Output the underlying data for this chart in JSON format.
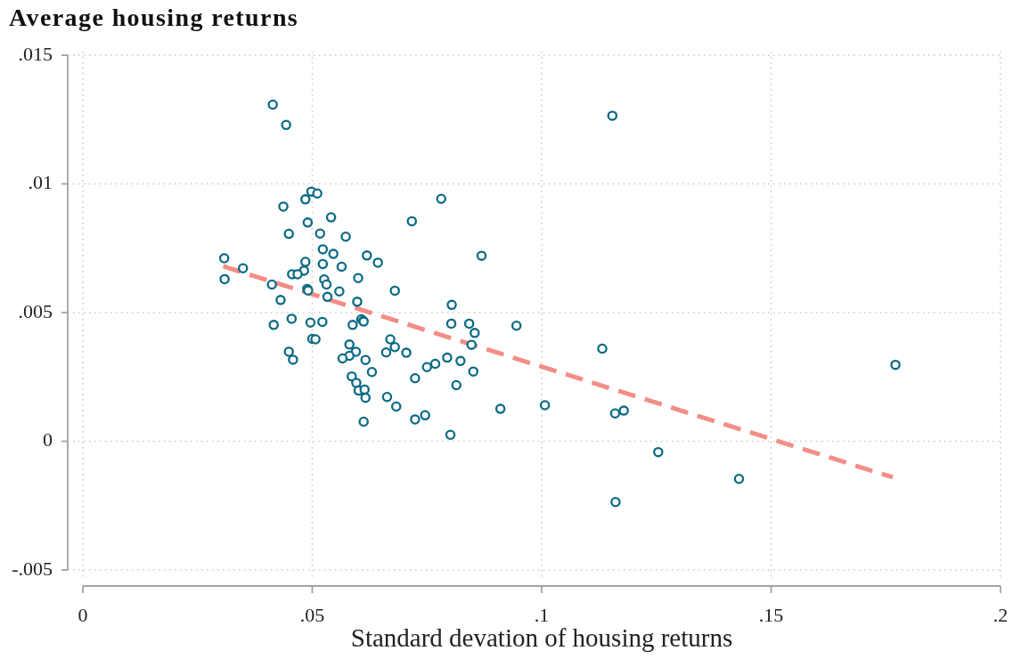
{
  "chart_data": {
    "type": "scatter",
    "title": "Average housing returns",
    "xlabel": "Standard devation of housing returns",
    "xlim": [
      0,
      0.2
    ],
    "xticks": [
      0,
      {
        "value": 0.05,
        "label": ".05"
      },
      {
        "value": 0.1,
        "label": ".1"
      },
      {
        "value": 0.15,
        "label": ".15"
      },
      {
        "value": 0.2,
        "label": ".2"
      }
    ],
    "ylim": [
      -0.005,
      0.015
    ],
    "yticks": [
      {
        "value": -0.005,
        "label": "-.005"
      },
      0,
      {
        "value": 0.005,
        "label": ".005"
      },
      {
        "value": 0.01,
        "label": ".01"
      },
      {
        "value": 0.015,
        "label": ".015"
      }
    ],
    "grid": true,
    "marker": "circle",
    "series": [
      {
        "type": "scatter",
        "color": "#0b6a85",
        "x": [
          0.0414,
          0.0443,
          0.0498,
          0.0511,
          0.0485,
          0.0781,
          0.0437,
          0.0541,
          0.049,
          0.0717,
          0.0449,
          0.0517,
          0.0573,
          0.0523,
          0.0546,
          0.0308,
          0.0869,
          0.0619,
          0.0643,
          0.0485,
          0.0523,
          0.0564,
          0.0349,
          0.0482,
          0.0456,
          0.0468,
          0.0526,
          0.0309,
          0.06,
          0.0531,
          0.0412,
          0.0489,
          0.0491,
          0.0559,
          0.068,
          0.0431,
          0.0533,
          0.0598,
          0.0804,
          0.0607,
          0.0611,
          0.0612,
          0.0455,
          0.0416,
          0.0496,
          0.0522,
          0.0588,
          0.0803,
          0.0842,
          0.0945,
          0.0854,
          0.05,
          0.0507,
          0.067,
          0.0581,
          0.0847,
          0.068,
          0.1132,
          0.0595,
          0.0449,
          0.0661,
          0.0705,
          0.0581,
          0.0566,
          0.0458,
          0.0616,
          0.0794,
          0.0768,
          0.075,
          0.0823,
          0.1771,
          0.063,
          0.0851,
          0.0586,
          0.0724,
          0.0596,
          0.0814,
          0.0601,
          0.0614,
          0.0616,
          0.0663,
          0.0683,
          0.1007,
          0.091,
          0.1179,
          0.116,
          0.0746,
          0.0724,
          0.0612,
          0.0801,
          0.1254,
          0.143,
          0.1161,
          0.1154
        ],
        "values": [
          0.01308,
          0.01229,
          0.0097,
          0.00963,
          0.0094,
          0.00942,
          0.00912,
          0.0087,
          0.0085,
          0.00855,
          0.00806,
          0.00807,
          0.00795,
          0.00746,
          0.00728,
          0.00711,
          0.00721,
          0.00722,
          0.00694,
          0.00697,
          0.00689,
          0.00678,
          0.00672,
          0.00663,
          0.00649,
          0.00649,
          0.00629,
          0.0063,
          0.00634,
          0.00609,
          0.00609,
          0.00592,
          0.00586,
          0.00582,
          0.00585,
          0.00549,
          0.00561,
          0.00542,
          0.0053,
          0.00474,
          0.00468,
          0.00465,
          0.00476,
          0.00452,
          0.00461,
          0.00464,
          0.00452,
          0.00457,
          0.00457,
          0.00449,
          0.00421,
          0.00398,
          0.00396,
          0.00396,
          0.00376,
          0.00375,
          0.00366,
          0.0036,
          0.00348,
          0.00348,
          0.00345,
          0.00344,
          0.00332,
          0.00322,
          0.00317,
          0.00316,
          0.00325,
          0.00301,
          0.00288,
          0.00312,
          0.00297,
          0.00269,
          0.00271,
          0.00252,
          0.00245,
          0.00227,
          0.00218,
          0.00197,
          0.00201,
          0.00169,
          0.00172,
          0.00135,
          0.0014,
          0.00126,
          0.00119,
          0.00108,
          0.00101,
          0.00085,
          0.00076,
          0.00025,
          -0.00042,
          -0.00146,
          -0.00236,
          0.01265
        ]
      },
      {
        "type": "line",
        "color": "#f28e86",
        "x": [
          0.0306,
          0.1765
        ],
        "values": [
          0.0068,
          -0.0014
        ],
        "line_style": "dashed",
        "marker": "none"
      }
    ]
  }
}
